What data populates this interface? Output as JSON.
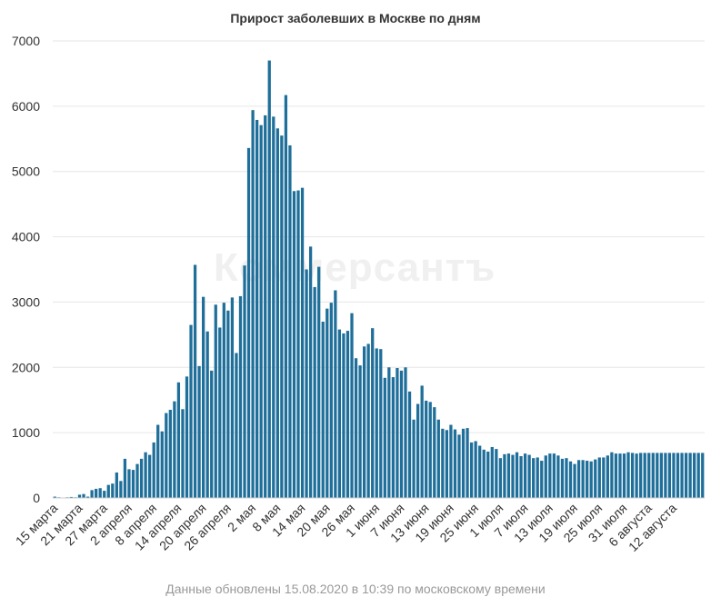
{
  "chart_data": {
    "type": "bar",
    "title": "Прирост заболевших в Москве по дням",
    "footnote": "Данные обновлены 15.08.2020 в 10:39 по московскому времени",
    "watermark": "Коммерсантъ",
    "bar_color": "#1f6f9a",
    "ylim": [
      0,
      7000
    ],
    "yticks": [
      0,
      1000,
      2000,
      3000,
      4000,
      5000,
      6000,
      7000
    ],
    "grid": true,
    "xlabel": "",
    "ylabel": "",
    "x_tick_labels": [
      "15 марта",
      "21 марта",
      "27 марта",
      "2 апреля",
      "8 апреля",
      "14 апреля",
      "20 апреля",
      "26 апреля",
      "2 мая",
      "8 мая",
      "14 мая",
      "20 мая",
      "26 мая",
      "1 июня",
      "7 июня",
      "13 июня",
      "19 июня",
      "25 июня",
      "1 июля",
      "7 июля",
      "13 июля",
      "19 июля",
      "25 июля",
      "31 июля",
      "6 августа",
      "12 августа"
    ],
    "x_start_date": "2020-03-15",
    "values": [
      20,
      10,
      5,
      10,
      15,
      10,
      50,
      60,
      20,
      120,
      140,
      150,
      110,
      200,
      220,
      390,
      260,
      600,
      440,
      430,
      520,
      600,
      700,
      660,
      850,
      1120,
      1020,
      1300,
      1350,
      1480,
      1770,
      1360,
      1860,
      2650,
      3570,
      2020,
      3080,
      2550,
      1950,
      2960,
      2610,
      2990,
      2870,
      3070,
      2220,
      3090,
      3560,
      5360,
      5940,
      5790,
      5710,
      5860,
      6700,
      5840,
      5660,
      5550,
      6170,
      5400,
      4700,
      4710,
      4750,
      3500,
      3850,
      3230,
      3540,
      2700,
      2900,
      2990,
      3180,
      2580,
      2520,
      2560,
      2830,
      2140,
      2030,
      2320,
      2360,
      2600,
      2290,
      2280,
      1840,
      2000,
      1850,
      1990,
      1950,
      2000,
      1630,
      1200,
      1440,
      1720,
      1490,
      1470,
      1390,
      1200,
      1060,
      1040,
      1120,
      1050,
      970,
      1060,
      1070,
      850,
      870,
      800,
      740,
      710,
      780,
      750,
      610,
      670,
      680,
      660,
      700,
      640,
      680,
      660,
      610,
      620,
      570,
      650,
      680,
      680,
      650,
      600,
      610,
      560,
      520,
      580,
      580,
      570,
      560,
      590,
      620,
      620,
      650,
      700,
      680,
      680,
      680,
      700,
      690,
      680,
      690,
      690,
      690,
      690,
      690,
      690,
      690,
      690,
      690,
      690,
      690,
      690,
      690,
      690,
      690,
      690
    ]
  }
}
